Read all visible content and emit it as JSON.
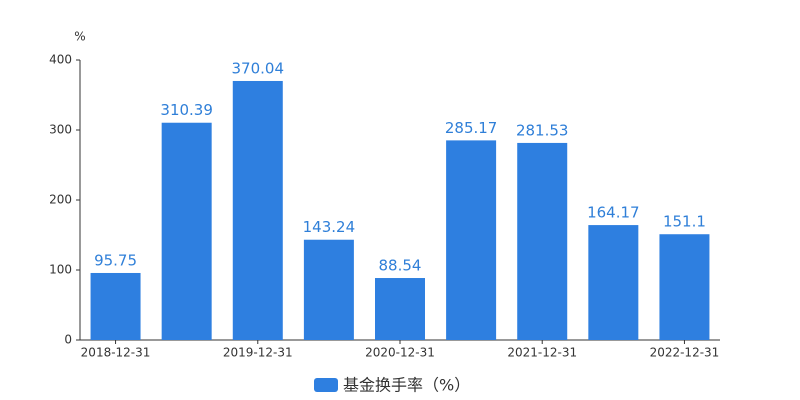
{
  "chart_data": {
    "type": "bar",
    "y_unit": "%",
    "categories": [
      "2018-12-31",
      null,
      "2019-12-31",
      null,
      "2020-12-31",
      null,
      "2021-12-31",
      null,
      "2022-12-31"
    ],
    "series": [
      {
        "name": "基金换手率（%）",
        "color": "#2e7fe0",
        "values": [
          95.75,
          310.39,
          370.04,
          143.24,
          88.54,
          285.17,
          281.53,
          164.17,
          151.1
        ]
      }
    ],
    "ylim": [
      0,
      400
    ],
    "yticks": [
      0,
      100,
      200,
      300,
      400
    ],
    "grid": false
  }
}
